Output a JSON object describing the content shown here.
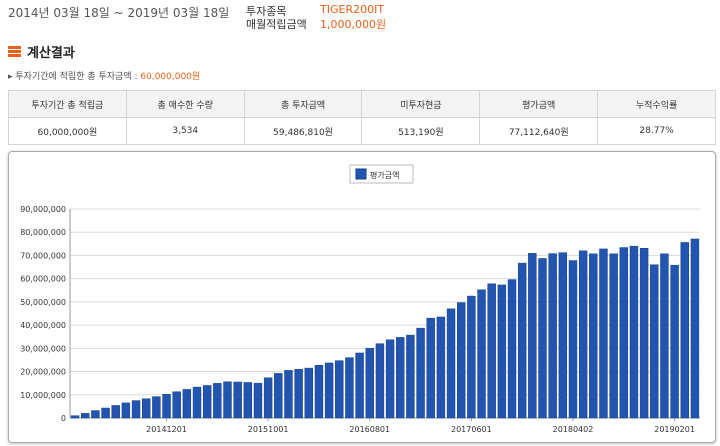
{
  "header": {
    "period": "2014년 03월 18일 ~ 2019년 03월 18일",
    "stock_label": "투자종목",
    "stock_value": "TIGER200IT",
    "monthly_label": "매월적립금액",
    "monthly_value": "1,000,000원"
  },
  "section": {
    "title": "계산결과"
  },
  "note": {
    "prefix": "투자기간에 적립한 총 투자금액 : ",
    "amount": "60,000,000원"
  },
  "summary_table": {
    "headers": [
      "투자기간 총 적립금",
      "총 매수한 수량",
      "총 투자금액",
      "미투자현금",
      "평가금액",
      "누적수익률"
    ],
    "values": [
      "60,000,000원",
      "3,534",
      "59,486,810원",
      "513,190원",
      "77,112,640원",
      "28.77%"
    ]
  },
  "colors": {
    "accent": "#e8611a",
    "bar": "#2255b0",
    "bar_border": "#173f88"
  },
  "chart_data": {
    "type": "bar",
    "legend": "평가금액",
    "legend_position": "top-center",
    "grid": true,
    "ylim": [
      0,
      90000000
    ],
    "yticks": [
      "0",
      "10,000,000",
      "20,000,000",
      "30,000,000",
      "40,000,000",
      "50,000,000",
      "60,000,000",
      "70,000,000",
      "80,000,000",
      "90,000,000"
    ],
    "xtick_labels": [
      {
        "index": 9,
        "label": "20141201"
      },
      {
        "index": 19,
        "label": "20151001"
      },
      {
        "index": 29,
        "label": "20160801"
      },
      {
        "index": 39,
        "label": "20170601"
      },
      {
        "index": 49,
        "label": "20180402"
      },
      {
        "index": 59,
        "label": "20190201"
      }
    ],
    "series": [
      {
        "name": "평가금액",
        "values": [
          1000000,
          2000000,
          3200000,
          4300000,
          5400000,
          6500000,
          7500000,
          8300000,
          9200000,
          10200000,
          11300000,
          12300000,
          13300000,
          14000000,
          14900000,
          15600000,
          15500000,
          15300000,
          15000000,
          17300000,
          19200000,
          20500000,
          21000000,
          21500000,
          22700000,
          23700000,
          24700000,
          26000000,
          28000000,
          30000000,
          32000000,
          33700000,
          34700000,
          35700000,
          38700000,
          43000000,
          43500000,
          47000000,
          49700000,
          52500000,
          55200000,
          57800000,
          57300000,
          59600000,
          66700000,
          70900000,
          68700000,
          70800000,
          71200000,
          67800000,
          72000000,
          70700000,
          72800000,
          70700000,
          73400000,
          74000000,
          73100000,
          66000000,
          70700000,
          65800000,
          75600000,
          77100000
        ]
      }
    ]
  }
}
